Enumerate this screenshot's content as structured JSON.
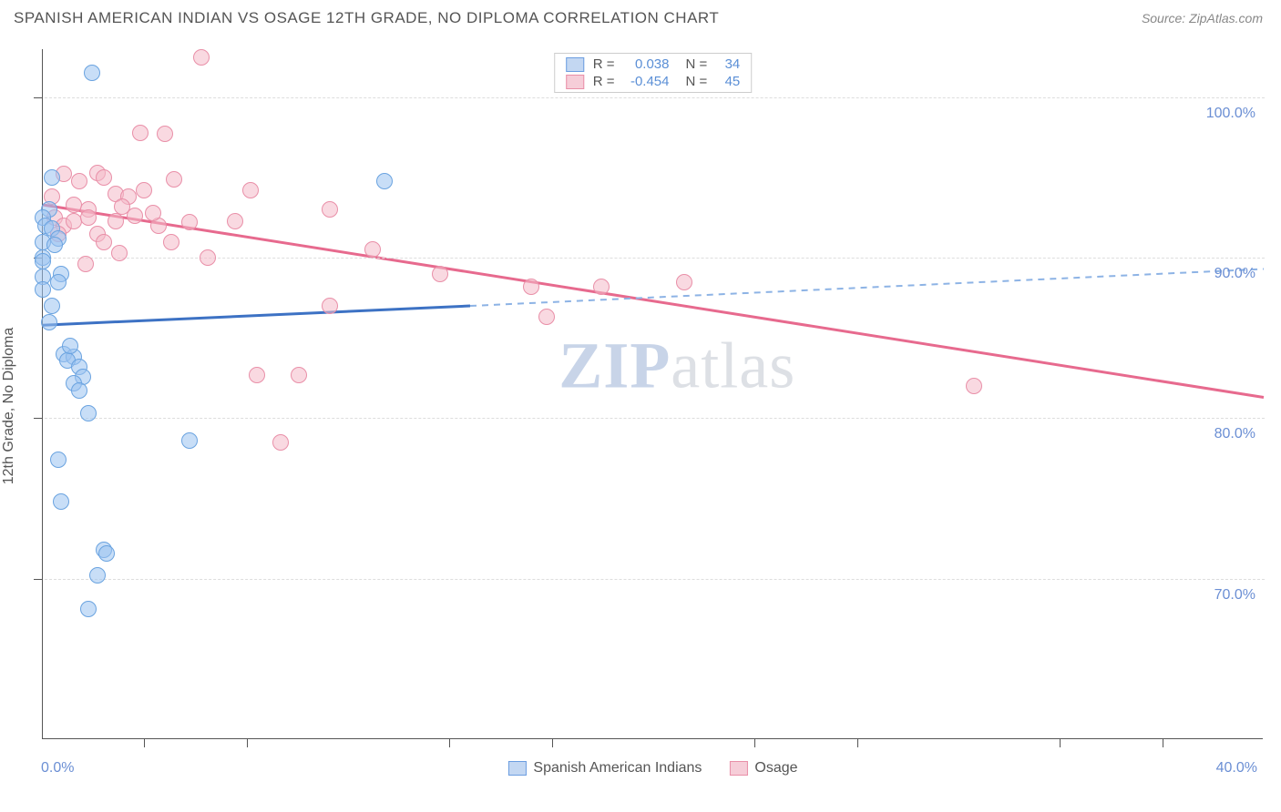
{
  "title": "SPANISH AMERICAN INDIAN VS OSAGE 12TH GRADE, NO DIPLOMA CORRELATION CHART",
  "source": "Source: ZipAtlas.com",
  "watermark": {
    "zip": "ZIP",
    "atlas": "atlas"
  },
  "axis": {
    "y_title": "12th Grade, No Diploma",
    "x_min": 0,
    "x_max": 40,
    "y_min": 60,
    "y_max": 103,
    "x_start_label": "0.0%",
    "x_end_label": "40.0%",
    "y_ticks": [
      70,
      80,
      90,
      100
    ],
    "y_tick_labels": [
      "70.0%",
      "80.0%",
      "90.0%",
      "100.0%"
    ],
    "x_minor_ticks": [
      3.3,
      6.7,
      13.3,
      16.7,
      23.3,
      26.7,
      33.3,
      36.7
    ],
    "grid_color": "#dddddd"
  },
  "stats_legend": {
    "rows": [
      {
        "swatch_fill": "#c3d7f2",
        "swatch_border": "#6b9de0",
        "r_label": "R =",
        "r_val": "0.038",
        "n_label": "N =",
        "n_val": "34"
      },
      {
        "swatch_fill": "#f6cdd8",
        "swatch_border": "#e98fa8",
        "r_label": "R =",
        "r_val": "-0.454",
        "n_label": "N =",
        "n_val": "45"
      }
    ]
  },
  "bottom_legend": {
    "items": [
      {
        "swatch_fill": "#c3d7f2",
        "swatch_border": "#6b9de0",
        "label": "Spanish American Indians"
      },
      {
        "swatch_fill": "#f6cdd8",
        "swatch_border": "#e98fa8",
        "label": "Osage"
      }
    ]
  },
  "series": {
    "blue": {
      "fill": "rgba(154,195,240,0.55)",
      "stroke": "#6aa3e0",
      "radius": 9,
      "points": [
        [
          1.6,
          101.5
        ],
        [
          0.3,
          95.0
        ],
        [
          0.2,
          93.0
        ],
        [
          0.0,
          92.5
        ],
        [
          0.1,
          92.0
        ],
        [
          0.3,
          91.8
        ],
        [
          0.0,
          91.0
        ],
        [
          0.5,
          91.2
        ],
        [
          0.0,
          90.0
        ],
        [
          0.0,
          89.8
        ],
        [
          0.0,
          88.8
        ],
        [
          0.0,
          88.0
        ],
        [
          11.2,
          94.8
        ],
        [
          0.7,
          84.0
        ],
        [
          1.0,
          83.8
        ],
        [
          0.8,
          83.6
        ],
        [
          1.2,
          83.2
        ],
        [
          1.3,
          82.6
        ],
        [
          1.0,
          82.2
        ],
        [
          1.2,
          81.7
        ],
        [
          4.8,
          78.6
        ],
        [
          0.5,
          77.4
        ],
        [
          0.6,
          74.8
        ],
        [
          2.0,
          71.8
        ],
        [
          2.1,
          71.6
        ],
        [
          1.8,
          70.2
        ],
        [
          1.5,
          68.1
        ],
        [
          0.4,
          90.8
        ],
        [
          0.6,
          89.0
        ],
        [
          0.2,
          86.0
        ],
        [
          1.5,
          80.3
        ],
        [
          0.9,
          84.5
        ],
        [
          0.5,
          88.5
        ],
        [
          0.3,
          87.0
        ]
      ],
      "trend": {
        "x1": 0,
        "y1": 85.8,
        "x2_solid": 14,
        "y2_solid": 87.0,
        "x2": 40,
        "y2": 89.3,
        "solid_color": "#3d72c4",
        "dash_color": "#8db3e5",
        "width": 3
      }
    },
    "pink": {
      "fill": "rgba(244,185,200,0.55)",
      "stroke": "#e98fa8",
      "radius": 9,
      "points": [
        [
          5.2,
          102.5
        ],
        [
          3.2,
          97.8
        ],
        [
          4.0,
          97.7
        ],
        [
          0.7,
          95.2
        ],
        [
          1.2,
          94.8
        ],
        [
          1.8,
          95.3
        ],
        [
          2.0,
          95.0
        ],
        [
          2.4,
          94.0
        ],
        [
          2.8,
          93.8
        ],
        [
          3.3,
          94.2
        ],
        [
          4.3,
          94.9
        ],
        [
          1.0,
          93.3
        ],
        [
          1.5,
          93.0
        ],
        [
          0.4,
          92.5
        ],
        [
          0.7,
          92.0
        ],
        [
          1.0,
          92.3
        ],
        [
          1.5,
          92.5
        ],
        [
          2.4,
          92.3
        ],
        [
          2.6,
          93.2
        ],
        [
          3.0,
          92.6
        ],
        [
          1.8,
          91.5
        ],
        [
          6.8,
          94.2
        ],
        [
          3.8,
          92.0
        ],
        [
          4.8,
          92.2
        ],
        [
          6.3,
          92.3
        ],
        [
          9.4,
          93.0
        ],
        [
          1.4,
          89.6
        ],
        [
          5.4,
          90.0
        ],
        [
          10.8,
          90.5
        ],
        [
          13.0,
          89.0
        ],
        [
          9.4,
          87.0
        ],
        [
          16.0,
          88.2
        ],
        [
          18.3,
          88.2
        ],
        [
          16.5,
          86.3
        ],
        [
          21.0,
          88.5
        ],
        [
          7.0,
          82.7
        ],
        [
          8.4,
          82.7
        ],
        [
          7.8,
          78.5
        ],
        [
          0.3,
          93.8
        ],
        [
          2.0,
          91.0
        ],
        [
          3.6,
          92.8
        ],
        [
          2.5,
          90.3
        ],
        [
          4.2,
          91.0
        ],
        [
          30.5,
          82.0
        ],
        [
          0.5,
          91.5
        ]
      ],
      "trend": {
        "x1": 0,
        "y1": 93.3,
        "x2_solid": 40,
        "y2_solid": 81.3,
        "x2": 40,
        "y2": 81.3,
        "solid_color": "#e76a8e",
        "dash_color": "#e76a8e",
        "width": 3
      }
    }
  }
}
